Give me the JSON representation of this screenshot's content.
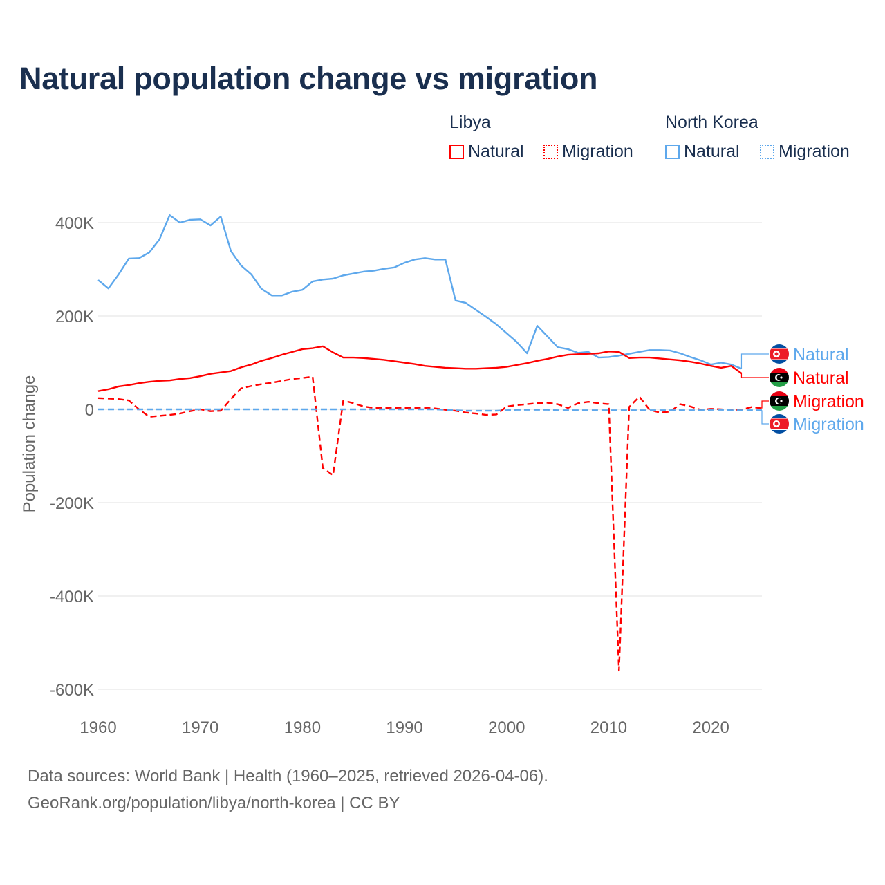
{
  "title": "Natural population change vs migration",
  "legend": {
    "groups": [
      {
        "country": "Libya",
        "items": [
          "Natural",
          "Migration"
        ],
        "color": "#ff0000"
      },
      {
        "country": "North Korea",
        "items": [
          "Natural",
          "Migration"
        ],
        "color": "#5ea8ec"
      }
    ]
  },
  "footer": {
    "line1": "Data sources: World Bank | Health (1960–2025, retrieved 2026-04-06).",
    "line2": "GeoRank.org/population/libya/north-korea | CC BY"
  },
  "chart_data": {
    "type": "line",
    "title": "Natural population change vs migration",
    "xlabel": "",
    "ylabel": "Population change",
    "xlim": [
      1960,
      2025
    ],
    "ylim": [
      -600000,
      400000
    ],
    "xticks": [
      1960,
      1970,
      1980,
      1990,
      2000,
      2010,
      2020
    ],
    "xtick_labels": [
      "1960",
      "1970",
      "1980",
      "1990",
      "2000",
      "2010",
      "2020"
    ],
    "yticks": [
      400000,
      200000,
      0,
      -200000,
      -400000,
      -600000
    ],
    "ytick_labels": [
      "400K",
      "200K",
      "0",
      "-200K",
      "-400K",
      "-600K"
    ],
    "grid": true,
    "legend_position": "top-right",
    "units": "thousands",
    "series": [
      {
        "name": "North Korea Natural",
        "label": "Natural",
        "country": "North Korea",
        "color": "#5ea8ec",
        "dash": false,
        "start": 1960,
        "values": [
          277,
          259,
          289,
          323,
          324,
          336,
          364,
          416,
          400,
          406,
          407,
          394,
          413,
          339,
          308,
          289,
          258,
          244,
          244,
          252,
          256,
          274,
          278,
          280,
          287,
          291,
          295,
          297,
          301,
          304,
          314,
          321,
          324,
          321,
          321,
          233,
          228,
          213,
          198,
          182,
          163,
          144,
          120,
          179,
          156,
          133,
          129,
          121,
          123,
          111,
          112,
          115,
          119,
          123,
          127,
          127,
          126,
          120,
          112,
          105,
          96,
          100,
          96,
          87
        ]
      },
      {
        "name": "Libya Natural",
        "label": "Natural",
        "country": "Libya",
        "color": "#ff0000",
        "dash": false,
        "start": 1960,
        "values": [
          39,
          43,
          49,
          52,
          56,
          59,
          61,
          62,
          65,
          67,
          71,
          76,
          79,
          82,
          90,
          96,
          104,
          110,
          117,
          123,
          129,
          131,
          135,
          122,
          111,
          111,
          110,
          108,
          106,
          103,
          100,
          97,
          93,
          91,
          89,
          88,
          87,
          87,
          88,
          89,
          91,
          95,
          99,
          104,
          108,
          113,
          117,
          118,
          119,
          120,
          124,
          123,
          110,
          111,
          111,
          109,
          107,
          105,
          102,
          98,
          93,
          89,
          93,
          77
        ]
      },
      {
        "name": "Libya Migration",
        "label": "Migration",
        "country": "Libya",
        "color": "#ff0000",
        "dash": true,
        "start": 1960,
        "values": [
          24,
          23,
          22,
          19,
          0,
          -16,
          -14,
          -12,
          -9,
          -4,
          0,
          -4,
          -3,
          22,
          45,
          50,
          54,
          57,
          61,
          65,
          67,
          70,
          -126,
          -141,
          19,
          13,
          6,
          3,
          3,
          3,
          3,
          3,
          3,
          2,
          -1,
          -3,
          -7,
          -9,
          -12,
          -11,
          6,
          9,
          11,
          13,
          14,
          11,
          3,
          13,
          16,
          13,
          11,
          -560,
          5,
          27,
          -1,
          -7,
          -5,
          11,
          6,
          -1,
          1,
          0,
          -1,
          -1,
          5,
          2
        ]
      },
      {
        "name": "North Korea Migration",
        "label": "Migration",
        "country": "North Korea",
        "color": "#5ea8ec",
        "dash": true,
        "start": 1960,
        "values": [
          0,
          0,
          0,
          0,
          0,
          0,
          0,
          0,
          0,
          0,
          0,
          0,
          0,
          0,
          0,
          0,
          0,
          0,
          0,
          0,
          0,
          0,
          0,
          0,
          0,
          0,
          0,
          0,
          0,
          0,
          0,
          0,
          0,
          0,
          -1,
          -2,
          -3,
          -3,
          -3,
          -3,
          -2,
          -1,
          -1,
          -1,
          -1,
          -2,
          -2,
          -2,
          -2,
          -2,
          -2,
          -2,
          -2,
          -2,
          -2,
          -2,
          -2,
          -2,
          -2,
          -2,
          -1,
          -1,
          -2,
          -2,
          -2,
          -2
        ]
      }
    ]
  }
}
